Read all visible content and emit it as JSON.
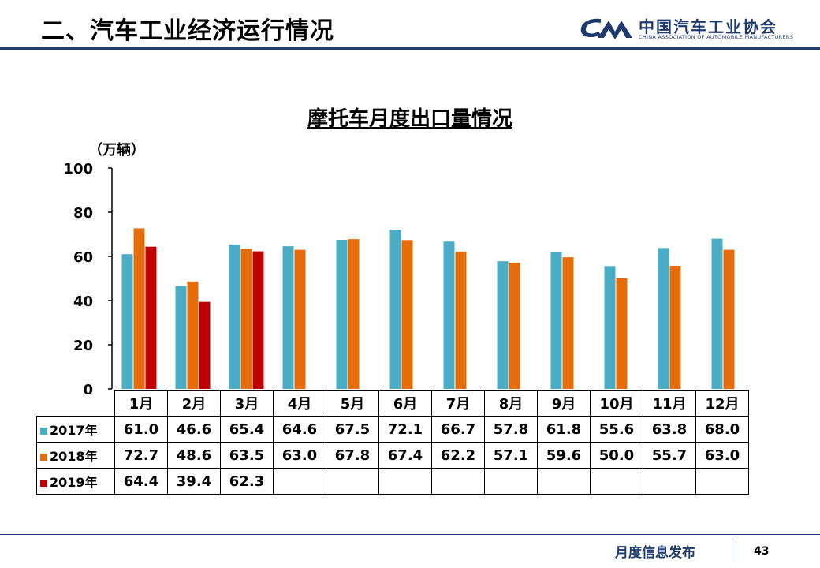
{
  "header": {
    "section_title": "二、汽车工业经济运行情况",
    "logo_cn": "中国汽车工业协会",
    "logo_en": "CHINA ASSOCIATION OF AUTOMOBILE MANUFACTURERS",
    "logo_mark": "CAM"
  },
  "colors": {
    "brand": "#1f3a6e",
    "s2017": "#4bacc6",
    "s2018": "#e46c0a",
    "s2019": "#c00000"
  },
  "chart_data": {
    "type": "bar",
    "title": "摩托车月度出口量情况",
    "unit": "（万辆）",
    "categories": [
      "1月",
      "2月",
      "3月",
      "4月",
      "5月",
      "6月",
      "7月",
      "8月",
      "9月",
      "10月",
      "11月",
      "12月"
    ],
    "ylim": [
      0,
      100
    ],
    "yticks": [
      "0",
      "20",
      "40",
      "60",
      "80",
      "100"
    ],
    "grid": false,
    "legend": "table",
    "series": [
      {
        "name": "2017年",
        "color": "#4bacc6",
        "values": [
          61.0,
          46.6,
          65.4,
          64.6,
          67.5,
          72.1,
          66.7,
          57.8,
          61.8,
          55.6,
          63.8,
          68.0
        ],
        "labels": [
          "61.0",
          "46.6",
          "65.4",
          "64.6",
          "67.5",
          "72.1",
          "66.7",
          "57.8",
          "61.8",
          "55.6",
          "63.8",
          "68.0"
        ]
      },
      {
        "name": "2018年",
        "color": "#e46c0a",
        "values": [
          72.7,
          48.6,
          63.5,
          63.0,
          67.8,
          67.4,
          62.2,
          57.1,
          59.6,
          50.0,
          55.7,
          63.0
        ],
        "labels": [
          "72.7",
          "48.6",
          "63.5",
          "63.0",
          "67.8",
          "67.4",
          "62.2",
          "57.1",
          "59.6",
          "50.0",
          "55.7",
          "63.0"
        ]
      },
      {
        "name": "2019年",
        "color": "#c00000",
        "values": [
          64.4,
          39.4,
          62.3,
          null,
          null,
          null,
          null,
          null,
          null,
          null,
          null,
          null
        ],
        "labels": [
          "64.4",
          "39.4",
          "62.3",
          "",
          "",
          "",
          "",
          "",
          "",
          "",
          "",
          ""
        ]
      }
    ]
  },
  "footer": {
    "text": "月度信息发布",
    "page": "43"
  }
}
